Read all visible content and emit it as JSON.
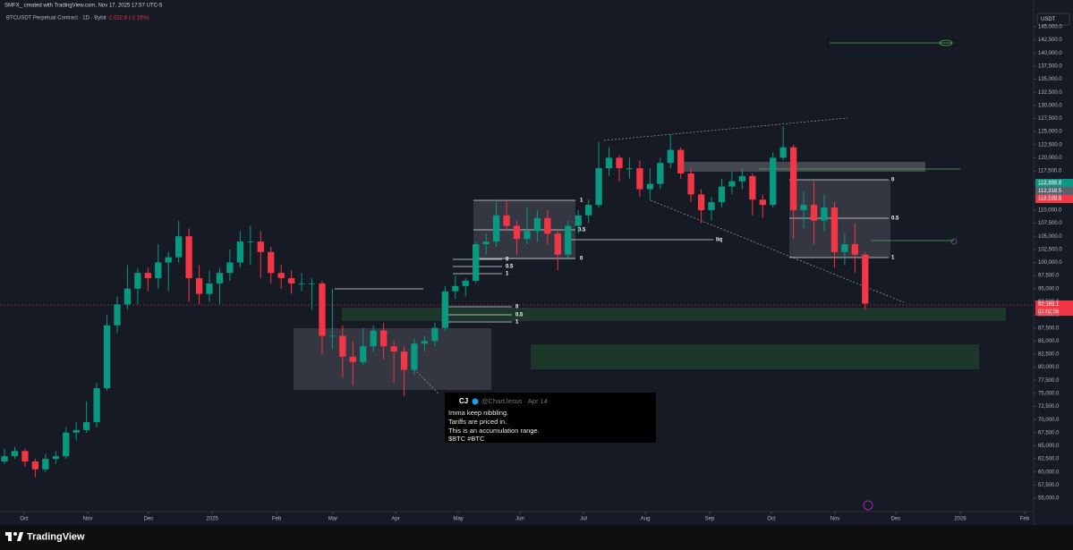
{
  "header": {
    "credit": "SMFX_ created with TradingView.com, Nov 17, 2025 17:57 UTC-5",
    "currency_button": "USDT",
    "brand": "TradingView"
  },
  "chart_data": {
    "type": "candlestick",
    "symbol": "BTCUSDT Perpetual Contract · 1D · Bybit",
    "change": "-2,022.8 (-2.15%)",
    "up_color": "#089981",
    "down_color": "#f23645",
    "grid": false,
    "categories": [
      null,
      null,
      null,
      null,
      null,
      null,
      null,
      null,
      null,
      null,
      null,
      null,
      null,
      null,
      null,
      null,
      null,
      null,
      null,
      null,
      null,
      null,
      null,
      null,
      null,
      null,
      null,
      null,
      null,
      null,
      null,
      null,
      null,
      null,
      null,
      null,
      null,
      null,
      null,
      null,
      null,
      null,
      null,
      null,
      null,
      null,
      null,
      null,
      null,
      null,
      null,
      null,
      null,
      null,
      null,
      null,
      null,
      null,
      null,
      null,
      null,
      null,
      null,
      null,
      null,
      null,
      null,
      null,
      null,
      null,
      null,
      null,
      null,
      null,
      null,
      null,
      null,
      null,
      null,
      null,
      null,
      null,
      null,
      null,
      null
    ],
    "ohlc": [
      [
        62000,
        64500,
        61500,
        63000
      ],
      [
        63000,
        64800,
        62500,
        64000
      ],
      [
        64000,
        64500,
        61000,
        62000
      ],
      [
        62000,
        62500,
        59000,
        60500
      ],
      [
        60500,
        63500,
        60000,
        62500
      ],
      [
        62500,
        64000,
        61500,
        63000
      ],
      [
        63000,
        68500,
        62500,
        67500
      ],
      [
        67500,
        69500,
        66000,
        68000
      ],
      [
        68000,
        73500,
        67500,
        69500
      ],
      [
        69500,
        77000,
        68500,
        76000
      ],
      [
        76000,
        90000,
        75500,
        88000
      ],
      [
        88000,
        93500,
        86500,
        92000
      ],
      [
        92000,
        99500,
        91000,
        95000
      ],
      [
        95000,
        99000,
        92000,
        98000
      ],
      [
        98000,
        99000,
        94500,
        97000
      ],
      [
        97000,
        103500,
        95000,
        100000
      ],
      [
        100000,
        102000,
        94500,
        101000
      ],
      [
        101000,
        108000,
        100000,
        105000
      ],
      [
        105000,
        106500,
        92500,
        97000
      ],
      [
        97000,
        99500,
        92000,
        94000
      ],
      [
        94000,
        98500,
        92500,
        96000
      ],
      [
        96000,
        99000,
        92000,
        98000
      ],
      [
        98000,
        102500,
        96500,
        100000
      ],
      [
        100000,
        106000,
        99000,
        104000
      ],
      [
        104000,
        107000,
        99500,
        104000
      ],
      [
        104000,
        106000,
        97000,
        102000
      ],
      [
        102000,
        103000,
        96000,
        98000
      ],
      [
        98000,
        99500,
        95000,
        97000
      ],
      [
        97000,
        98500,
        94000,
        96000
      ],
      [
        96000,
        98000,
        94500,
        96000
      ],
      [
        96000,
        97000,
        91000,
        96000
      ],
      [
        96000,
        96500,
        82500,
        86000
      ],
      [
        86000,
        95000,
        83500,
        86000
      ],
      [
        86000,
        88000,
        78000,
        82000
      ],
      [
        82000,
        85000,
        76500,
        81000
      ],
      [
        81000,
        87500,
        80500,
        84000
      ],
      [
        84000,
        88000,
        83000,
        87000
      ],
      [
        87000,
        88500,
        81500,
        84000
      ],
      [
        84000,
        85000,
        77000,
        83000
      ],
      [
        83000,
        84000,
        74500,
        79500
      ],
      [
        79500,
        85500,
        78500,
        84500
      ],
      [
        84500,
        86000,
        83000,
        85000
      ],
      [
        85000,
        88500,
        84000,
        87500
      ],
      [
        87500,
        95500,
        87000,
        94500
      ],
      [
        94500,
        97500,
        93000,
        95500
      ],
      [
        95500,
        97000,
        93500,
        96500
      ],
      [
        96500,
        104000,
        96000,
        103500
      ],
      [
        103500,
        105500,
        101500,
        104000
      ],
      [
        104000,
        112000,
        103000,
        109000
      ],
      [
        109000,
        112000,
        106000,
        107000
      ],
      [
        107000,
        108000,
        101500,
        104500
      ],
      [
        104500,
        110500,
        103500,
        106000
      ],
      [
        106000,
        110000,
        104000,
        108500
      ],
      [
        108500,
        110000,
        103500,
        105500
      ],
      [
        105500,
        106000,
        98500,
        101500
      ],
      [
        101500,
        108000,
        100500,
        107000
      ],
      [
        107000,
        110000,
        105500,
        109000
      ],
      [
        109000,
        112000,
        107500,
        111000
      ],
      [
        111000,
        123000,
        110500,
        118000
      ],
      [
        118000,
        122000,
        116500,
        120000
      ],
      [
        120000,
        120500,
        115500,
        118000
      ],
      [
        118000,
        120000,
        116000,
        118000
      ],
      [
        118000,
        119500,
        112500,
        114000
      ],
      [
        114000,
        118000,
        112000,
        115000
      ],
      [
        115000,
        120000,
        114000,
        119000
      ],
      [
        119000,
        124500,
        118000,
        121500
      ],
      [
        121500,
        122000,
        116000,
        117000
      ],
      [
        117000,
        118000,
        111500,
        113000
      ],
      [
        113000,
        114000,
        107500,
        110000
      ],
      [
        110000,
        112500,
        108000,
        111500
      ],
      [
        111500,
        116000,
        110500,
        114500
      ],
      [
        114500,
        117500,
        113000,
        115500
      ],
      [
        115500,
        118000,
        114000,
        116500
      ],
      [
        116500,
        117000,
        109000,
        112000
      ],
      [
        112000,
        113000,
        108500,
        111000
      ],
      [
        111000,
        121000,
        110500,
        120000
      ],
      [
        120000,
        126000,
        119500,
        122000
      ],
      [
        122000,
        122500,
        104500,
        110000
      ],
      [
        110000,
        113500,
        106500,
        111000
      ],
      [
        111000,
        115500,
        103500,
        108000
      ],
      [
        108000,
        113000,
        106000,
        110500
      ],
      [
        110500,
        111500,
        99000,
        102000
      ],
      [
        102000,
        105500,
        99500,
        103500
      ],
      [
        103500,
        107500,
        98000,
        101500
      ],
      [
        101500,
        102000,
        91000,
        92165.1
      ]
    ],
    "xlim": [
      -0.44,
      100.44
    ],
    "xticks": [
      {
        "value": 1.92,
        "label": "Oct"
      },
      {
        "value": 8.12,
        "label": "Nov"
      },
      {
        "value": 14.06,
        "label": "Dec"
      },
      {
        "value": 20.26,
        "label": "2025"
      },
      {
        "value": 26.55,
        "label": "Feb"
      },
      {
        "value": 32.05,
        "label": "Mar"
      },
      {
        "value": 38.17,
        "label": "Apr"
      },
      {
        "value": 44.28,
        "label": "May"
      },
      {
        "value": 50.31,
        "label": "Jun"
      },
      {
        "value": 56.51,
        "label": "Jul"
      },
      {
        "value": 62.53,
        "label": "Aug"
      },
      {
        "value": 68.82,
        "label": "Sep"
      },
      {
        "value": 74.85,
        "label": "Oct"
      },
      {
        "value": 81.05,
        "label": "Nov"
      },
      {
        "value": 86.99,
        "label": "Dec"
      },
      {
        "value": 93.28,
        "label": "2026"
      },
      {
        "value": 99.56,
        "label": "Feb"
      }
    ],
    "ylim": [
      52440,
      147560
    ],
    "yticks": [
      {
        "value": 55000,
        "label": "55,000.0"
      },
      {
        "value": 57500,
        "label": "57,500.0"
      },
      {
        "value": 60000,
        "label": "60,000.0"
      },
      {
        "value": 62500,
        "label": "62,500.0"
      },
      {
        "value": 65000,
        "label": "65,000.0"
      },
      {
        "value": 67500,
        "label": "67,500.0"
      },
      {
        "value": 70000,
        "label": "70,000.0"
      },
      {
        "value": 72500,
        "label": "72,500.0"
      },
      {
        "value": 75000,
        "label": "75,000.0"
      },
      {
        "value": 77500,
        "label": "77,500.0"
      },
      {
        "value": 80000,
        "label": "80,000.0"
      },
      {
        "value": 82500,
        "label": "82,500.0"
      },
      {
        "value": 85000,
        "label": "85,000.0"
      },
      {
        "value": 87500,
        "label": "87,500.0"
      },
      {
        "value": 90000,
        "label": "90,000.0"
      },
      {
        "value": 92500,
        "label": "92,500.0"
      },
      {
        "value": 95000,
        "label": "95,000.0"
      },
      {
        "value": 97500,
        "label": "97,500.0"
      },
      {
        "value": 100000,
        "label": "100,000.0"
      },
      {
        "value": 102500,
        "label": "102,500.0"
      },
      {
        "value": 105000,
        "label": "105,000.0"
      },
      {
        "value": 107500,
        "label": "107,500.0"
      },
      {
        "value": 110000,
        "label": "110,000.0"
      },
      {
        "value": 112500,
        "label": "112,500.0"
      },
      {
        "value": 115000,
        "label": "115,000.0"
      },
      {
        "value": 117500,
        "label": "117,500.0"
      },
      {
        "value": 120000,
        "label": "120,000.0"
      },
      {
        "value": 122500,
        "label": "122,500.0"
      },
      {
        "value": 125000,
        "label": "125,000.0"
      },
      {
        "value": 127500,
        "label": "127,500.0"
      },
      {
        "value": 130000,
        "label": "130,000.0"
      },
      {
        "value": 132500,
        "label": "132,500.0"
      },
      {
        "value": 135000,
        "label": "135,000.0"
      },
      {
        "value": 137500,
        "label": "137,500.0"
      },
      {
        "value": 140000,
        "label": "140,000.0"
      },
      {
        "value": 142500,
        "label": "142,500.0"
      },
      {
        "value": 145000,
        "label": "145,000.0"
      }
    ],
    "price_tags": [
      "112,886.8",
      "112,318.5",
      "112,289.9",
      "92,165.1",
      "01:02:56"
    ],
    "fib_labels": [
      "1",
      "0.5",
      "0",
      "0",
      "0.5",
      "1",
      "0",
      "0.5",
      "1",
      "0",
      "0.5",
      "1"
    ],
    "liq_label": "liq",
    "tweet": {
      "name": "CJ",
      "handle": "@ChartJesus · Apr 14",
      "lines": [
        "Imma keep nibbling.",
        "Tariffs are priced in.",
        "This is an accumulation range.",
        "$BTC #BTC"
      ]
    }
  }
}
